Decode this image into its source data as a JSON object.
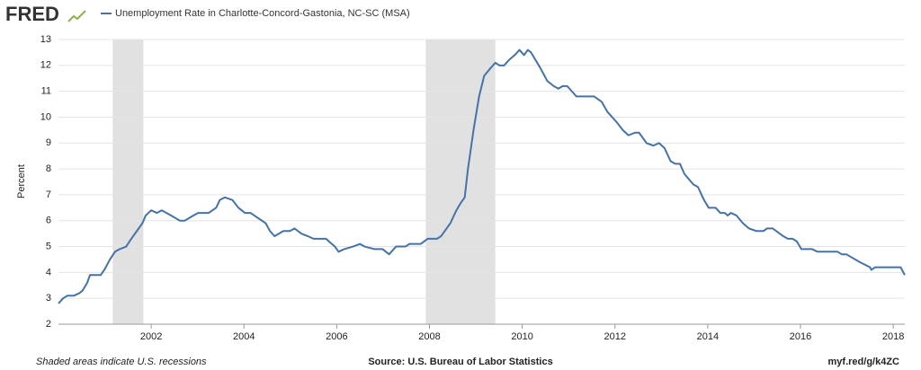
{
  "header": {
    "logo": "FRED"
  },
  "chart_data": {
    "type": "line",
    "y_label": "Percent",
    "x": [
      2000.0,
      2000.1,
      2000.19,
      2000.33,
      2000.45,
      2000.52,
      2000.62,
      2000.68,
      2000.91,
      2000.99,
      2001.11,
      2001.22,
      2001.32,
      2001.46,
      2001.57,
      2001.69,
      2001.81,
      2001.88,
      2002.0,
      2002.12,
      2002.23,
      2002.43,
      2002.62,
      2002.72,
      2002.91,
      2003.01,
      2003.24,
      2003.4,
      2003.48,
      2003.59,
      2003.75,
      2003.88,
      2004.02,
      2004.14,
      2004.47,
      2004.56,
      2004.66,
      2004.85,
      2004.99,
      2005.09,
      2005.24,
      2005.38,
      2005.5,
      2005.77,
      2005.83,
      2005.96,
      2006.04,
      2006.16,
      2006.35,
      2006.5,
      2006.6,
      2006.82,
      2006.99,
      2007.13,
      2007.28,
      2007.48,
      2007.57,
      2007.81,
      2007.96,
      2008.16,
      2008.25,
      2008.45,
      2008.58,
      2008.68,
      2008.76,
      2008.83,
      2008.95,
      2009.07,
      2009.18,
      2009.32,
      2009.42,
      2009.51,
      2009.61,
      2009.71,
      2009.84,
      2009.94,
      2010.04,
      2010.12,
      2010.19,
      2010.39,
      2010.54,
      2010.68,
      2010.78,
      2010.87,
      2010.97,
      2011.07,
      2011.17,
      2011.55,
      2011.71,
      2011.84,
      2012.04,
      2012.17,
      2012.29,
      2012.43,
      2012.52,
      2012.68,
      2012.83,
      2012.95,
      2013.07,
      2013.2,
      2013.3,
      2013.4,
      2013.5,
      2013.69,
      2013.79,
      2013.92,
      2014.02,
      2014.17,
      2014.27,
      2014.37,
      2014.43,
      2014.5,
      2014.62,
      2014.76,
      2014.89,
      2015.05,
      2015.2,
      2015.28,
      2015.4,
      2015.63,
      2015.73,
      2015.83,
      2015.92,
      2016.02,
      2016.25,
      2016.37,
      2016.8,
      2016.89,
      2016.99,
      2017.28,
      2017.5,
      2017.53,
      2017.61,
      2018.16,
      2018.25
    ],
    "series": [
      {
        "name": "Unemployment Rate in Charlotte-Concord-Gastonia, NC-SC (MSA)",
        "color": "#4572a7",
        "values": [
          2.8,
          3.0,
          3.1,
          3.1,
          3.2,
          3.3,
          3.6,
          3.9,
          3.9,
          4.1,
          4.5,
          4.8,
          4.9,
          5.0,
          5.3,
          5.6,
          5.9,
          6.2,
          6.4,
          6.3,
          6.4,
          6.2,
          6.0,
          6.0,
          6.2,
          6.3,
          6.3,
          6.5,
          6.8,
          6.9,
          6.8,
          6.5,
          6.3,
          6.3,
          5.9,
          5.6,
          5.4,
          5.6,
          5.6,
          5.7,
          5.5,
          5.4,
          5.3,
          5.3,
          5.2,
          5.0,
          4.8,
          4.9,
          5.0,
          5.1,
          5.0,
          4.9,
          4.9,
          4.7,
          5.0,
          5.0,
          5.1,
          5.1,
          5.3,
          5.3,
          5.4,
          5.9,
          6.4,
          6.7,
          6.9,
          8.0,
          9.5,
          10.8,
          11.6,
          11.9,
          12.1,
          12.0,
          12.0,
          12.2,
          12.4,
          12.6,
          12.4,
          12.6,
          12.5,
          11.9,
          11.4,
          11.2,
          11.1,
          11.2,
          11.2,
          11.0,
          10.8,
          10.8,
          10.6,
          10.2,
          9.8,
          9.5,
          9.3,
          9.4,
          9.4,
          9.0,
          8.9,
          9.0,
          8.8,
          8.3,
          8.2,
          8.2,
          7.8,
          7.4,
          7.3,
          6.8,
          6.5,
          6.5,
          6.3,
          6.3,
          6.2,
          6.3,
          6.2,
          5.9,
          5.7,
          5.6,
          5.6,
          5.7,
          5.7,
          5.4,
          5.3,
          5.3,
          5.2,
          4.9,
          4.9,
          4.8,
          4.8,
          4.7,
          4.7,
          4.4,
          4.2,
          4.1,
          4.2,
          4.2,
          3.9
        ]
      }
    ],
    "recessions": [
      [
        2001.17,
        2001.83
      ],
      [
        2007.92,
        2009.42
      ]
    ],
    "recession_color": "#e1e1e1",
    "xlim": [
      2000,
      2018.25
    ],
    "ylim": [
      2,
      13
    ],
    "xticks": [
      2002,
      2004,
      2006,
      2008,
      2010,
      2012,
      2014,
      2016,
      2018
    ],
    "yticks": [
      2,
      3,
      4,
      5,
      6,
      7,
      8,
      9,
      10,
      11,
      12,
      13
    ],
    "grid": true
  },
  "footer": {
    "note": "Shaded areas indicate U.S. recessions",
    "source": "Source: U.S. Bureau of Labor Statistics",
    "link": "myf.red/g/k4ZC"
  }
}
